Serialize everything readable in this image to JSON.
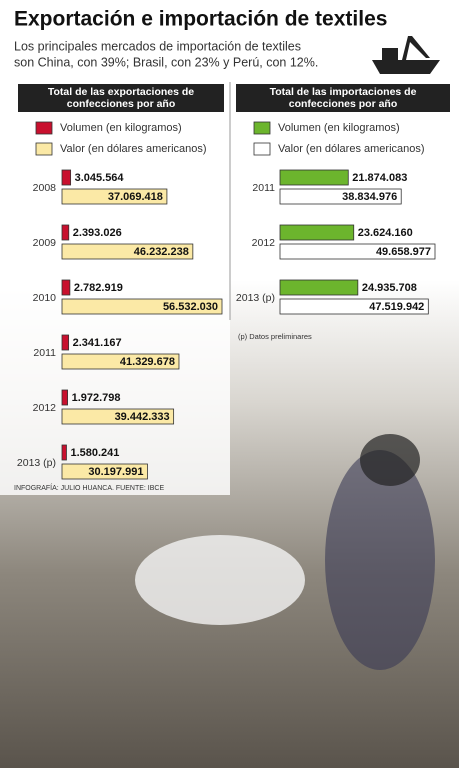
{
  "header": {
    "title": "Exportación e importación de textiles",
    "subtitle_lines": [
      "Los principales mercados de importación de textiles",
      "son China, con 39%; Brasil, con 23% y Perú, con 12%."
    ]
  },
  "chart_data": [
    {
      "type": "bar",
      "title_lines": [
        "Total de las exportaciones de",
        "confecciones por año"
      ],
      "categories": [
        "2008",
        "2009",
        "2010",
        "2011",
        "2012",
        "2013 (p)"
      ],
      "series": [
        {
          "name": "Volumen (en kilogramos)",
          "color": "#c8102e",
          "values": [
            3045564,
            2393026,
            2782919,
            2341167,
            1972798,
            1580241
          ],
          "value_labels": [
            "3.045.564",
            "2.393.026",
            "2.782.919",
            "2.341.167",
            "1.972.798",
            "1.580.241"
          ]
        },
        {
          "name": "Valor (en dólares americanos)",
          "color": "#fbe9a6",
          "values": [
            37069418,
            46232238,
            56532030,
            41329678,
            39442333,
            30197991
          ],
          "value_labels": [
            "37.069.418",
            "46.232.238",
            "56.532.030",
            "41.329.678",
            "39.442.333",
            "30.197.991"
          ]
        }
      ]
    },
    {
      "type": "bar",
      "title_lines": [
        "Total de las importaciones de",
        "confecciones por año"
      ],
      "categories": [
        "2011",
        "2012",
        "2013 (p)"
      ],
      "series": [
        {
          "name": "Volumen (en kilogramos)",
          "color": "#6cb52d",
          "values": [
            21874083,
            23624160,
            24935708
          ],
          "value_labels": [
            "21.874.083",
            "23.624.160",
            "24.935.708"
          ]
        },
        {
          "name": "Valor (en dólares americanos)",
          "color": "#ffffff",
          "values": [
            38834976,
            49658977,
            47519942
          ],
          "value_labels": [
            "38.834.976",
            "49.658.977",
            "47.519.942"
          ]
        }
      ],
      "note": "(p) Datos preliminares"
    }
  ],
  "footer": {
    "credit": "INFOGRAFÍA: JULIO HUANCA. FUENTE: IBCE"
  }
}
